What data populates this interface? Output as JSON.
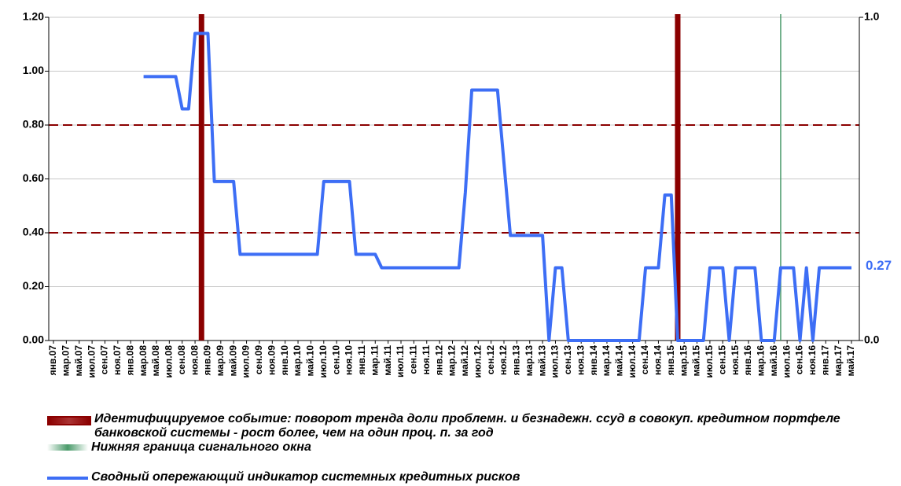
{
  "chart_data": {
    "type": "line",
    "categories": [
      "янв.07",
      null,
      "мар.07",
      null,
      "май.07",
      null,
      "июл.07",
      null,
      "сен.07",
      null,
      "ноя.07",
      null,
      "янв.08",
      null,
      "мар.08",
      null,
      "май.08",
      null,
      "июл.08",
      null,
      "сен.08",
      null,
      "ноя.08",
      null,
      "янв.09",
      null,
      "мар.09",
      null,
      "май.09",
      null,
      "июл.09",
      null,
      "сен.09",
      null,
      "ноя.09",
      null,
      "янв.10",
      null,
      "мар.10",
      null,
      "май.10",
      null,
      "июл.10",
      null,
      "сен.10",
      null,
      "ноя.10",
      null,
      "янв.11",
      null,
      "мар.11",
      null,
      "май.11",
      null,
      "июл.11",
      null,
      "сен.11",
      null,
      "ноя.11",
      null,
      "янв.12",
      null,
      "мар.12",
      null,
      "май.12",
      null,
      "июл.12",
      null,
      "сен.12",
      null,
      "ноя.12",
      null,
      "янв.13",
      null,
      "мар.13",
      null,
      "май.13",
      null,
      "июл.13",
      null,
      "сен.13",
      null,
      "ноя.13",
      null,
      "янв.14",
      null,
      "мар.14",
      null,
      "май.14",
      null,
      "июл.14",
      null,
      "сен.14",
      null,
      "ноя.14",
      null,
      "янв.15",
      null,
      "мар.15",
      null,
      "май.15",
      null,
      "июл.15",
      null,
      "сен.15",
      null,
      "ноя.15",
      null,
      "янв.16",
      null,
      "мар.16",
      null,
      "май.16",
      null,
      "июл.16",
      null,
      "сен.16",
      null,
      "ноя.16",
      null,
      "янв.17",
      null,
      "мар.17",
      null,
      "май.17"
    ],
    "series": [
      {
        "name": "Сводный опережающий индикатор системных кредитных рисков",
        "color": "#3d6ef5",
        "values": [
          null,
          null,
          null,
          null,
          null,
          null,
          null,
          null,
          null,
          null,
          null,
          null,
          null,
          null,
          0.98,
          0.98,
          0.98,
          0.98,
          0.98,
          0.98,
          0.86,
          0.86,
          1.14,
          1.14,
          1.14,
          0.59,
          0.59,
          0.59,
          0.59,
          0.32,
          0.32,
          0.32,
          0.32,
          0.32,
          0.32,
          0.32,
          0.32,
          0.32,
          0.32,
          0.32,
          0.32,
          0.32,
          0.59,
          0.59,
          0.59,
          0.59,
          0.59,
          0.32,
          0.32,
          0.32,
          0.32,
          0.27,
          0.27,
          0.27,
          0.27,
          0.27,
          0.27,
          0.27,
          0.27,
          0.27,
          0.27,
          0.27,
          0.27,
          0.27,
          0.55,
          0.93,
          0.93,
          0.93,
          0.93,
          0.93,
          0.66,
          0.39,
          0.39,
          0.39,
          0.39,
          0.39,
          0.39,
          0,
          0.27,
          0.27,
          0,
          0,
          0,
          0,
          0,
          0,
          0,
          0,
          0,
          0,
          0,
          0,
          0.27,
          0.27,
          0.27,
          0.54,
          0.54,
          0,
          0,
          0,
          0,
          0,
          0.27,
          0.27,
          0.27,
          0,
          0.27,
          0.27,
          0.27,
          0.27,
          0,
          0,
          0,
          0.27,
          0.27,
          0.27,
          0,
          0.27,
          0,
          0.27,
          0.27,
          0.27,
          0.27,
          0.27,
          0.27
        ]
      }
    ],
    "events": [
      {
        "name": "Идентифицируемое событие: поворот тренда доли проблемн. и безнадежн. ссуд  в совокуп. кредитном портфеле банковской системы  - рост более, чем  на один проц. п. за год",
        "color": "#8b0000",
        "at": [
          23,
          97
        ]
      },
      {
        "name": "Нижняя граница сигнального окна",
        "color": "#4a9a6a",
        "at": [
          113
        ]
      }
    ],
    "thresholds": [
      0.8,
      0.4
    ],
    "threshold_color": "#8b0000",
    "ylim": [
      0,
      1.2
    ],
    "yticks": [
      {
        "value": 0,
        "label": "0.00"
      },
      {
        "value": 0.2,
        "label": "0.20"
      },
      {
        "value": 0.4,
        "label": "0.40"
      },
      {
        "value": 0.6,
        "label": "0.60"
      },
      {
        "value": 0.8,
        "label": "0.80"
      },
      {
        "value": 1,
        "label": "1.00"
      },
      {
        "value": 1.2,
        "label": "1.20"
      }
    ],
    "y2lim": [
      0,
      1
    ],
    "y2ticks": [
      {
        "value": 0,
        "label": "0.0"
      },
      {
        "value": 1,
        "label": "1.0"
      }
    ],
    "grid": true
  }
}
